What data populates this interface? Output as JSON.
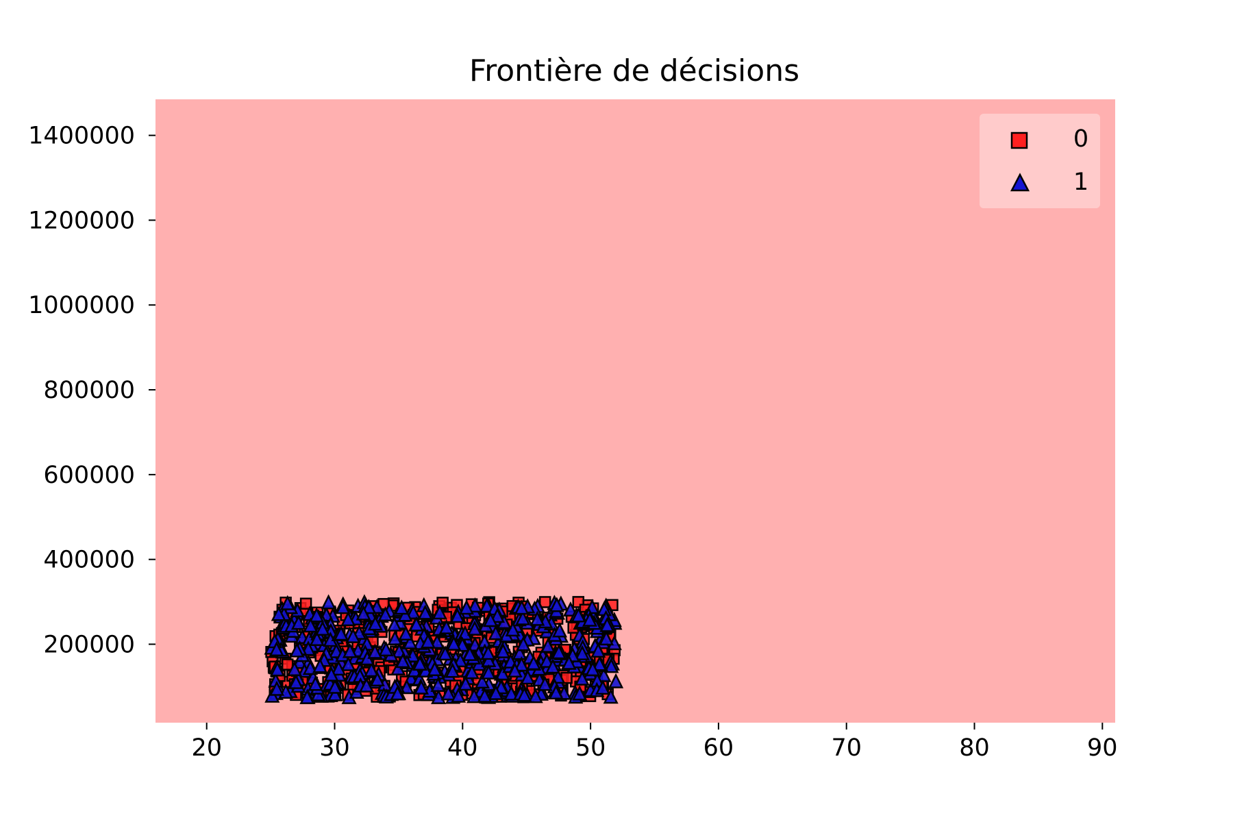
{
  "chart_data": {
    "type": "scatter",
    "title": "Frontière de décisions",
    "xlabel": "",
    "ylabel": "",
    "xlim": [
      16,
      91
    ],
    "ylim": [
      15000,
      1485000
    ],
    "x_ticks": [
      20,
      30,
      40,
      50,
      60,
      70,
      80,
      90
    ],
    "y_ticks": [
      200000,
      400000,
      600000,
      800000,
      1000000,
      1200000,
      1400000
    ],
    "x_tick_labels": [
      "20",
      "30",
      "40",
      "50",
      "60",
      "70",
      "80",
      "90"
    ],
    "y_tick_labels": [
      "200000",
      "400000",
      "600000",
      "800000",
      "1000000",
      "1200000",
      "1400000"
    ],
    "grid": false,
    "legend_placement": "top-right",
    "decision_region": {
      "predicted_class": "0",
      "fill_color": "#ffb0b0"
    },
    "data_extent": {
      "x": [
        25,
        52
      ],
      "y": [
        75000,
        300000
      ]
    },
    "series": [
      {
        "name": "0",
        "marker": "square",
        "color": "#ff2020",
        "edge_color": "#000000"
      },
      {
        "name": "1",
        "marker": "triangle",
        "color": "#1414d2",
        "edge_color": "#000000"
      }
    ]
  }
}
